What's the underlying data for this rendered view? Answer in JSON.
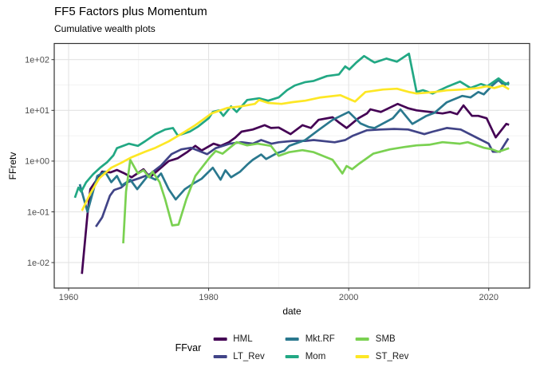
{
  "title": "FF5 Factors plus Momentum",
  "subtitle": "Cumulative wealth plots",
  "chart_data": {
    "type": "line",
    "title": "FF5 Factors plus Momentum",
    "subtitle": "Cumulative wealth plots",
    "xlabel": "date",
    "ylabel": "FFretv",
    "y_scale": "log10",
    "grid": true,
    "legend_title": "FFvar",
    "legend_position": "bottom",
    "xlim": [
      1957.95,
      2025.84
    ],
    "ylim_log10": [
      -2.502,
      2.318
    ],
    "x_ticks": [
      1960,
      1980,
      2000,
      2020
    ],
    "x_minor_ticks": [
      1970,
      1990,
      2010
    ],
    "y_ticks": [
      {
        "label": "1e-02",
        "value": 0.01
      },
      {
        "label": "1e-01",
        "value": 0.1
      },
      {
        "label": "1e+00",
        "value": 1
      },
      {
        "label": "1e+01",
        "value": 10
      },
      {
        "label": "1e+02",
        "value": 100
      }
    ],
    "y_minor_log10": [
      -1.5,
      -0.5,
      0.5,
      1.5
    ],
    "series": [
      {
        "name": "HML",
        "color": "#440154",
        "points": [
          [
            1961.9,
            0.006
          ],
          [
            1962.7,
            0.09
          ],
          [
            1963.1,
            0.28
          ],
          [
            1964.8,
            0.62
          ],
          [
            1966,
            0.6
          ],
          [
            1966.9,
            0.67
          ],
          [
            1968,
            0.57
          ],
          [
            1969,
            0.48
          ],
          [
            1970.7,
            0.69
          ],
          [
            1971.6,
            0.48
          ],
          [
            1973,
            0.7
          ],
          [
            1974.3,
            1.0
          ],
          [
            1975.6,
            1.14
          ],
          [
            1977,
            1.53
          ],
          [
            1978.1,
            2.0
          ],
          [
            1979,
            1.62
          ],
          [
            1980.7,
            2.2
          ],
          [
            1981.7,
            2.0
          ],
          [
            1982.9,
            2.36
          ],
          [
            1983.8,
            2.9
          ],
          [
            1984.7,
            3.8
          ],
          [
            1986.3,
            4.2
          ],
          [
            1988,
            5.1
          ],
          [
            1988.9,
            4.5
          ],
          [
            1990,
            4.6
          ],
          [
            1991.7,
            3.4
          ],
          [
            1993.4,
            5.1
          ],
          [
            1994.6,
            4.5
          ],
          [
            1995.7,
            6.5
          ],
          [
            1997.7,
            7.3
          ],
          [
            1998.6,
            5.8
          ],
          [
            1999.7,
            4.5
          ],
          [
            2001.4,
            7.0
          ],
          [
            2002.6,
            8.7
          ],
          [
            2003.1,
            10.5
          ],
          [
            2004.6,
            9.3
          ],
          [
            2007,
            13.4
          ],
          [
            2008.5,
            11
          ],
          [
            2009.7,
            10
          ],
          [
            2011,
            9.5
          ],
          [
            2013.4,
            8.7
          ],
          [
            2014.5,
            9.3
          ],
          [
            2015.5,
            8.4
          ],
          [
            2016.4,
            12.5
          ],
          [
            2017.6,
            7.8
          ],
          [
            2018.5,
            7.8
          ],
          [
            2019.7,
            7.0
          ],
          [
            2021,
            2.93
          ],
          [
            2022.5,
            5.4
          ],
          [
            2022.9,
            5.2
          ]
        ]
      },
      {
        "name": "LT_Rev",
        "color": "#414487",
        "points": [
          [
            1963.9,
            0.051
          ],
          [
            1964.8,
            0.078
          ],
          [
            1965.9,
            0.208
          ],
          [
            1966.5,
            0.27
          ],
          [
            1967.5,
            0.3
          ],
          [
            1968.4,
            0.385
          ],
          [
            1970.1,
            0.46
          ],
          [
            1971.6,
            0.55
          ],
          [
            1973.2,
            0.82
          ],
          [
            1974.7,
            1.37
          ],
          [
            1976.1,
            1.7
          ],
          [
            1977.5,
            1.83
          ],
          [
            1979.8,
            1.37
          ],
          [
            1981,
            1.8
          ],
          [
            1983,
            2.2
          ],
          [
            1984.7,
            2.36
          ],
          [
            1986.3,
            2.2
          ],
          [
            1987.5,
            2.6
          ],
          [
            1989,
            2.2
          ],
          [
            1990,
            2.35
          ],
          [
            1992,
            2.5
          ],
          [
            1993.8,
            2.5
          ],
          [
            1995,
            2.6
          ],
          [
            1998,
            2.35
          ],
          [
            1999.5,
            2.6
          ],
          [
            2000.6,
            3.16
          ],
          [
            2002.6,
            4.05
          ],
          [
            2004.5,
            4.2
          ],
          [
            2006.5,
            4.3
          ],
          [
            2008.5,
            4.2
          ],
          [
            2010.8,
            3.4
          ],
          [
            2012,
            3.8
          ],
          [
            2014,
            4.5
          ],
          [
            2016,
            4.2
          ],
          [
            2018.5,
            2.8
          ],
          [
            2020,
            2.2
          ],
          [
            2020.6,
            1.53
          ],
          [
            2021.6,
            1.53
          ],
          [
            2022.8,
            2.8
          ]
        ]
      },
      {
        "name": "Mkt.RF",
        "color": "#2a788e",
        "points": [
          [
            1961.6,
            0.35
          ],
          [
            1962.7,
            0.1
          ],
          [
            1964.1,
            0.51
          ],
          [
            1965.2,
            0.62
          ],
          [
            1966.1,
            0.385
          ],
          [
            1966.9,
            0.51
          ],
          [
            1967.6,
            0.33
          ],
          [
            1968.8,
            0.43
          ],
          [
            1969.8,
            0.28
          ],
          [
            1971.3,
            0.51
          ],
          [
            1972.4,
            0.43
          ],
          [
            1973.2,
            0.57
          ],
          [
            1974.3,
            0.28
          ],
          [
            1975.3,
            0.175
          ],
          [
            1976.6,
            0.28
          ],
          [
            1977.8,
            0.36
          ],
          [
            1979,
            0.45
          ],
          [
            1980.6,
            0.74
          ],
          [
            1981.7,
            0.43
          ],
          [
            1982.4,
            0.66
          ],
          [
            1983.2,
            0.48
          ],
          [
            1984.5,
            0.62
          ],
          [
            1985.5,
            0.85
          ],
          [
            1986.3,
            1.06
          ],
          [
            1987.5,
            1.35
          ],
          [
            1988.2,
            1.1
          ],
          [
            1989.7,
            1.42
          ],
          [
            1990.8,
            1.6
          ],
          [
            1991.5,
            2.0
          ],
          [
            1993.8,
            2.6
          ],
          [
            1995.7,
            4.1
          ],
          [
            1997.7,
            6.5
          ],
          [
            2000,
            9.3
          ],
          [
            2001.7,
            5.5
          ],
          [
            2002.9,
            4.7
          ],
          [
            2003.7,
            4.5
          ],
          [
            2006.3,
            7.0
          ],
          [
            2007.4,
            10.4
          ],
          [
            2009.1,
            5.4
          ],
          [
            2011.1,
            7.8
          ],
          [
            2012.3,
            9.0
          ],
          [
            2014,
            14.4
          ],
          [
            2016.2,
            19.3
          ],
          [
            2017.4,
            18
          ],
          [
            2018.5,
            23
          ],
          [
            2019.3,
            20.7
          ],
          [
            2020.5,
            30.9
          ],
          [
            2021.4,
            39.5
          ],
          [
            2022.2,
            31
          ],
          [
            2022.9,
            35.7
          ]
        ]
      },
      {
        "name": "Mom",
        "color": "#22a884",
        "points": [
          [
            1960.9,
            0.19
          ],
          [
            1961.4,
            0.3
          ],
          [
            1961.8,
            0.25
          ],
          [
            1962.5,
            0.38
          ],
          [
            1963.5,
            0.55
          ],
          [
            1964.5,
            0.74
          ],
          [
            1965.5,
            0.95
          ],
          [
            1966.4,
            1.3
          ],
          [
            1966.9,
            1.8
          ],
          [
            1968.6,
            2.2
          ],
          [
            1969.9,
            2.0
          ],
          [
            1970.9,
            2.45
          ],
          [
            1972.4,
            3.4
          ],
          [
            1973.8,
            4.2
          ],
          [
            1974.9,
            4.5
          ],
          [
            1975.6,
            3.2
          ],
          [
            1977.3,
            3.8
          ],
          [
            1978.5,
            4.8
          ],
          [
            1980,
            7.0
          ],
          [
            1980.6,
            9.3
          ],
          [
            1981.5,
            10
          ],
          [
            1982.1,
            7.8
          ],
          [
            1983.2,
            12
          ],
          [
            1984,
            9.3
          ],
          [
            1985.5,
            16
          ],
          [
            1987.2,
            17.3
          ],
          [
            1988.5,
            15.5
          ],
          [
            1990,
            18
          ],
          [
            1991.2,
            25
          ],
          [
            1992.3,
            31
          ],
          [
            1993.8,
            36
          ],
          [
            1995,
            38
          ],
          [
            1996.9,
            47.5
          ],
          [
            1998.6,
            51
          ],
          [
            1999.5,
            73.5
          ],
          [
            2000.1,
            64
          ],
          [
            2001.1,
            88
          ],
          [
            2002.2,
            118
          ],
          [
            2003.1,
            98
          ],
          [
            2003.7,
            88
          ],
          [
            2005.4,
            105
          ],
          [
            2006.9,
            91
          ],
          [
            2008.6,
            131
          ],
          [
            2009.7,
            23
          ],
          [
            2010.6,
            25
          ],
          [
            2012,
            21.5
          ],
          [
            2014.2,
            29.7
          ],
          [
            2015.9,
            37
          ],
          [
            2017.4,
            27.6
          ],
          [
            2018.9,
            33
          ],
          [
            2019.8,
            30
          ],
          [
            2021.4,
            42.7
          ],
          [
            2022.2,
            35
          ],
          [
            2022.9,
            32
          ]
        ]
      },
      {
        "name": "SMB",
        "color": "#7ad151",
        "points": [
          [
            1967.8,
            0.024
          ],
          [
            1968.2,
            0.25
          ],
          [
            1968.8,
            1.06
          ],
          [
            1969.9,
            0.57
          ],
          [
            1970.7,
            0.66
          ],
          [
            1971.5,
            0.48
          ],
          [
            1972,
            0.62
          ],
          [
            1973,
            0.385
          ],
          [
            1973.8,
            0.175
          ],
          [
            1974.8,
            0.054
          ],
          [
            1975.7,
            0.056
          ],
          [
            1976.8,
            0.175
          ],
          [
            1978.1,
            0.51
          ],
          [
            1979.2,
            0.8
          ],
          [
            1980.2,
            1.2
          ],
          [
            1981,
            1.58
          ],
          [
            1982,
            1.4
          ],
          [
            1984,
            2.36
          ],
          [
            1985.5,
            2.04
          ],
          [
            1987,
            2.2
          ],
          [
            1988.9,
            2.0
          ],
          [
            1990,
            1.27
          ],
          [
            1991.5,
            1.5
          ],
          [
            1993.4,
            1.64
          ],
          [
            1995,
            1.5
          ],
          [
            1997.7,
            1.06
          ],
          [
            1999.1,
            0.57
          ],
          [
            1999.7,
            0.8
          ],
          [
            2000.5,
            0.69
          ],
          [
            2001.5,
            0.89
          ],
          [
            2003.5,
            1.4
          ],
          [
            2005.9,
            1.7
          ],
          [
            2008,
            1.9
          ],
          [
            2009.7,
            2.04
          ],
          [
            2011.5,
            2.1
          ],
          [
            2013.4,
            2.36
          ],
          [
            2015.9,
            2.2
          ],
          [
            2017,
            2.36
          ],
          [
            2019.3,
            1.83
          ],
          [
            2020.5,
            1.7
          ],
          [
            2021.4,
            1.53
          ],
          [
            2022.9,
            1.8
          ]
        ]
      },
      {
        "name": "ST_Rev",
        "color": "#fde725",
        "points": [
          [
            1961.9,
            0.105
          ],
          [
            1963.1,
            0.23
          ],
          [
            1964.4,
            0.46
          ],
          [
            1966.1,
            0.74
          ],
          [
            1967.5,
            0.92
          ],
          [
            1969,
            1.19
          ],
          [
            1970.9,
            1.53
          ],
          [
            1972.4,
            1.83
          ],
          [
            1974.3,
            2.45
          ],
          [
            1976.2,
            3.5
          ],
          [
            1978.1,
            5.1
          ],
          [
            1980.4,
            8.7
          ],
          [
            1982.7,
            11.2
          ],
          [
            1984.6,
            12
          ],
          [
            1986.6,
            13.4
          ],
          [
            1987.2,
            16
          ],
          [
            1988.5,
            14
          ],
          [
            1990.4,
            13.4
          ],
          [
            1992,
            14.5
          ],
          [
            1993.8,
            15.5
          ],
          [
            1996,
            18
          ],
          [
            1998.8,
            19.9
          ],
          [
            2000.9,
            14.9
          ],
          [
            2002.4,
            23
          ],
          [
            2004.9,
            25.7
          ],
          [
            2006.9,
            26.7
          ],
          [
            2008.6,
            23
          ],
          [
            2009.7,
            21.5
          ],
          [
            2012.3,
            23
          ],
          [
            2014,
            24.8
          ],
          [
            2016.2,
            25.7
          ],
          [
            2018.5,
            27.6
          ],
          [
            2019.7,
            29.7
          ],
          [
            2020.8,
            27.6
          ],
          [
            2022,
            30.9
          ],
          [
            2022.9,
            26
          ]
        ]
      }
    ]
  },
  "legend": {
    "title": "FFvar"
  }
}
